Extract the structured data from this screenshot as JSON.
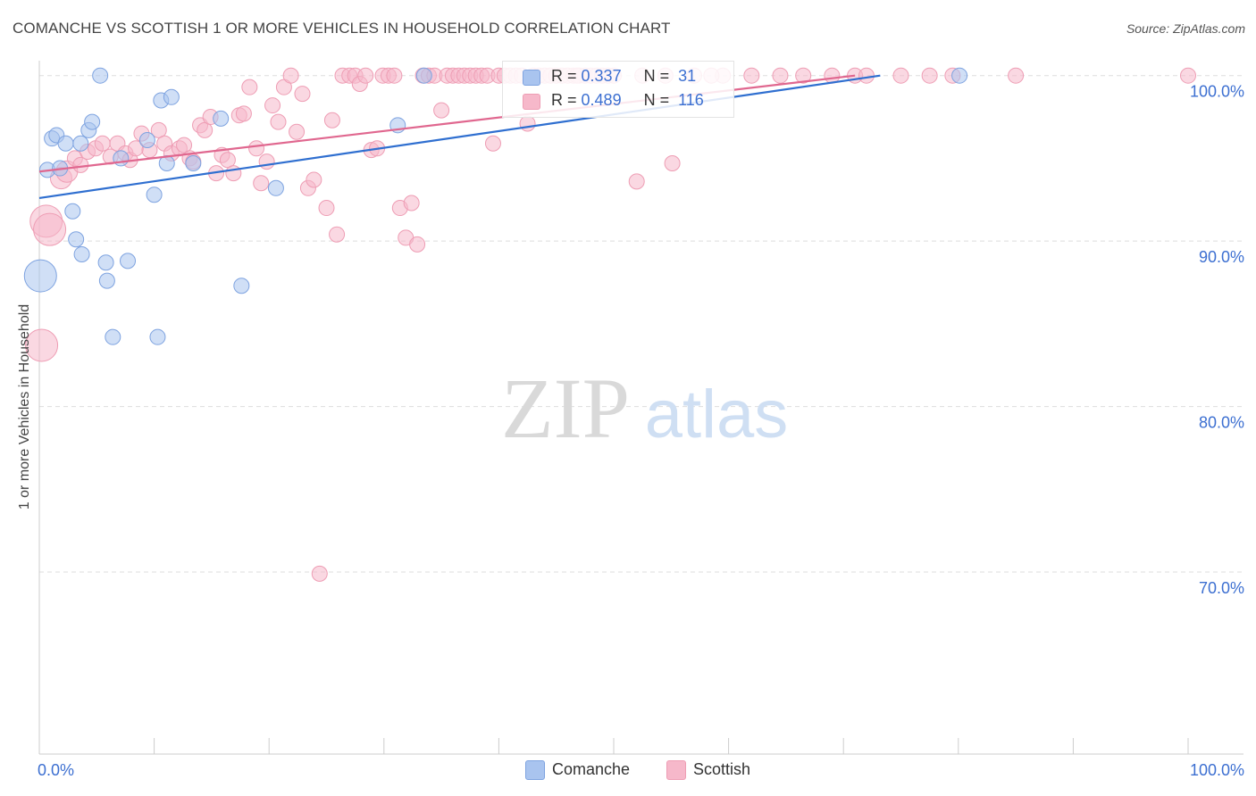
{
  "header": {
    "title": "COMANCHE VS SCOTTISH 1 OR MORE VEHICLES IN HOUSEHOLD CORRELATION CHART",
    "source": "Source: ZipAtlas.com"
  },
  "watermark": {
    "zip": "ZIP",
    "atlas": "atlas"
  },
  "legend": {
    "r_label": "R =",
    "n_label": "N =",
    "rows": [
      {
        "name": "Comanche",
        "r": "0.337",
        "n": "31"
      },
      {
        "name": "Scottish",
        "r": "0.489",
        "n": "116"
      }
    ]
  },
  "colors": {
    "comanche_fill": "#a9c4ef",
    "comanche_stroke": "#7ea3e0",
    "comanche_line": "#2f6fd0",
    "scottish_fill": "#f6b8ca",
    "scottish_stroke": "#ee9db4",
    "scottish_line": "#e0678f",
    "tick_text": "#3c6fd1",
    "grid": "#dddddd"
  },
  "chart_data": {
    "type": "scatter",
    "title": "COMANCHE VS SCOTTISH 1 OR MORE VEHICLES IN HOUSEHOLD CORRELATION CHART",
    "xlabel": "",
    "ylabel": "1 or more Vehicles in Household",
    "xlim": [
      0,
      100
    ],
    "ylim": [
      59,
      100.9
    ],
    "x_tick_labels": [
      {
        "value": 0,
        "label": "0.0%"
      },
      {
        "value": 100,
        "label": "100.0%"
      }
    ],
    "y_tick_labels": [
      {
        "value": 100,
        "label": "100.0%"
      },
      {
        "value": 90,
        "label": "90.0%"
      },
      {
        "value": 80,
        "label": "80.0%"
      },
      {
        "value": 70,
        "label": "70.0%"
      }
    ],
    "grid": true,
    "legend_position": "top-center",
    "series": [
      {
        "name": "Comanche",
        "trend": {
          "x": [
            0,
            73.2
          ],
          "y": [
            92.6,
            100.0
          ]
        },
        "points": [
          {
            "x": 0.1,
            "y": 87.9,
            "s": 3
          },
          {
            "x": 0.7,
            "y": 94.3,
            "s": 1
          },
          {
            "x": 1.1,
            "y": 96.2,
            "s": 1
          },
          {
            "x": 1.5,
            "y": 96.4,
            "s": 1
          },
          {
            "x": 1.8,
            "y": 94.4,
            "s": 1
          },
          {
            "x": 2.3,
            "y": 95.9,
            "s": 1
          },
          {
            "x": 2.9,
            "y": 91.8,
            "s": 1
          },
          {
            "x": 3.2,
            "y": 90.1,
            "s": 1
          },
          {
            "x": 3.7,
            "y": 89.2,
            "s": 1
          },
          {
            "x": 3.6,
            "y": 95.9,
            "s": 1
          },
          {
            "x": 4.3,
            "y": 96.7,
            "s": 1
          },
          {
            "x": 4.6,
            "y": 97.2,
            "s": 1
          },
          {
            "x": 5.3,
            "y": 100.0,
            "s": 1
          },
          {
            "x": 5.8,
            "y": 88.7,
            "s": 1
          },
          {
            "x": 5.9,
            "y": 87.6,
            "s": 1
          },
          {
            "x": 6.4,
            "y": 84.2,
            "s": 1
          },
          {
            "x": 7.1,
            "y": 95.0,
            "s": 1
          },
          {
            "x": 7.7,
            "y": 88.8,
            "s": 1
          },
          {
            "x": 9.4,
            "y": 96.1,
            "s": 1
          },
          {
            "x": 10.0,
            "y": 92.8,
            "s": 1
          },
          {
            "x": 10.3,
            "y": 84.2,
            "s": 1
          },
          {
            "x": 10.6,
            "y": 98.5,
            "s": 1
          },
          {
            "x": 11.1,
            "y": 94.7,
            "s": 1
          },
          {
            "x": 11.5,
            "y": 98.7,
            "s": 1
          },
          {
            "x": 13.4,
            "y": 94.7,
            "s": 1
          },
          {
            "x": 15.8,
            "y": 97.4,
            "s": 1
          },
          {
            "x": 17.6,
            "y": 87.3,
            "s": 1
          },
          {
            "x": 20.6,
            "y": 93.2,
            "s": 1
          },
          {
            "x": 31.2,
            "y": 97.0,
            "s": 1
          },
          {
            "x": 33.5,
            "y": 100.0,
            "s": 1
          },
          {
            "x": 80.1,
            "y": 100.0,
            "s": 1
          }
        ]
      },
      {
        "name": "Scottish",
        "trend": {
          "x": [
            0,
            71.0
          ],
          "y": [
            94.2,
            100.0
          ]
        },
        "points": [
          {
            "x": 0.2,
            "y": 83.7,
            "s": 3
          },
          {
            "x": 0.6,
            "y": 91.2,
            "s": 3
          },
          {
            "x": 0.9,
            "y": 90.7,
            "s": 3
          },
          {
            "x": 1.9,
            "y": 93.8,
            "s": 2
          },
          {
            "x": 2.4,
            "y": 94.2,
            "s": 2
          },
          {
            "x": 3.1,
            "y": 95.0,
            "s": 1
          },
          {
            "x": 3.6,
            "y": 94.6,
            "s": 1
          },
          {
            "x": 4.2,
            "y": 95.4,
            "s": 1
          },
          {
            "x": 4.9,
            "y": 95.6,
            "s": 1
          },
          {
            "x": 5.5,
            "y": 95.9,
            "s": 1
          },
          {
            "x": 6.2,
            "y": 95.1,
            "s": 1
          },
          {
            "x": 6.8,
            "y": 95.9,
            "s": 1
          },
          {
            "x": 7.5,
            "y": 95.3,
            "s": 1
          },
          {
            "x": 7.9,
            "y": 94.9,
            "s": 1
          },
          {
            "x": 8.4,
            "y": 95.6,
            "s": 1
          },
          {
            "x": 8.9,
            "y": 96.5,
            "s": 1
          },
          {
            "x": 9.6,
            "y": 95.5,
            "s": 1
          },
          {
            "x": 10.4,
            "y": 96.7,
            "s": 1
          },
          {
            "x": 10.9,
            "y": 95.9,
            "s": 1
          },
          {
            "x": 11.5,
            "y": 95.3,
            "s": 1
          },
          {
            "x": 12.2,
            "y": 95.6,
            "s": 1
          },
          {
            "x": 12.6,
            "y": 95.8,
            "s": 1
          },
          {
            "x": 13.1,
            "y": 95.0,
            "s": 1
          },
          {
            "x": 13.4,
            "y": 94.8,
            "s": 1
          },
          {
            "x": 14.0,
            "y": 97.0,
            "s": 1
          },
          {
            "x": 14.4,
            "y": 96.7,
            "s": 1
          },
          {
            "x": 14.9,
            "y": 97.5,
            "s": 1
          },
          {
            "x": 15.4,
            "y": 94.1,
            "s": 1
          },
          {
            "x": 15.9,
            "y": 95.2,
            "s": 1
          },
          {
            "x": 16.4,
            "y": 94.9,
            "s": 1
          },
          {
            "x": 16.9,
            "y": 94.1,
            "s": 1
          },
          {
            "x": 17.4,
            "y": 97.6,
            "s": 1
          },
          {
            "x": 17.8,
            "y": 97.7,
            "s": 1
          },
          {
            "x": 18.3,
            "y": 99.3,
            "s": 1
          },
          {
            "x": 18.9,
            "y": 95.6,
            "s": 1
          },
          {
            "x": 19.3,
            "y": 93.5,
            "s": 1
          },
          {
            "x": 19.8,
            "y": 94.8,
            "s": 1
          },
          {
            "x": 20.3,
            "y": 98.2,
            "s": 1
          },
          {
            "x": 20.8,
            "y": 97.2,
            "s": 1
          },
          {
            "x": 21.3,
            "y": 99.3,
            "s": 1
          },
          {
            "x": 21.9,
            "y": 100.0,
            "s": 1
          },
          {
            "x": 22.4,
            "y": 96.6,
            "s": 1
          },
          {
            "x": 22.9,
            "y": 98.9,
            "s": 1
          },
          {
            "x": 23.4,
            "y": 93.2,
            "s": 1
          },
          {
            "x": 23.9,
            "y": 93.7,
            "s": 1
          },
          {
            "x": 24.4,
            "y": 69.9,
            "s": 1
          },
          {
            "x": 25.0,
            "y": 92.0,
            "s": 1
          },
          {
            "x": 25.5,
            "y": 97.3,
            "s": 1
          },
          {
            "x": 25.9,
            "y": 90.4,
            "s": 1
          },
          {
            "x": 26.4,
            "y": 100.0,
            "s": 1
          },
          {
            "x": 27.0,
            "y": 100.0,
            "s": 1
          },
          {
            "x": 27.5,
            "y": 100.0,
            "s": 1
          },
          {
            "x": 27.9,
            "y": 99.5,
            "s": 1
          },
          {
            "x": 28.4,
            "y": 100.0,
            "s": 1
          },
          {
            "x": 28.9,
            "y": 95.5,
            "s": 1
          },
          {
            "x": 29.4,
            "y": 95.6,
            "s": 1
          },
          {
            "x": 29.9,
            "y": 100.0,
            "s": 1
          },
          {
            "x": 30.4,
            "y": 100.0,
            "s": 1
          },
          {
            "x": 30.9,
            "y": 100.0,
            "s": 1
          },
          {
            "x": 31.4,
            "y": 92.0,
            "s": 1
          },
          {
            "x": 31.9,
            "y": 90.2,
            "s": 1
          },
          {
            "x": 32.4,
            "y": 92.3,
            "s": 1
          },
          {
            "x": 32.9,
            "y": 89.8,
            "s": 1
          },
          {
            "x": 33.4,
            "y": 100.0,
            "s": 1
          },
          {
            "x": 33.9,
            "y": 100.0,
            "s": 1
          },
          {
            "x": 34.4,
            "y": 100.0,
            "s": 1
          },
          {
            "x": 35.0,
            "y": 97.9,
            "s": 1
          },
          {
            "x": 35.5,
            "y": 100.0,
            "s": 1
          },
          {
            "x": 36.0,
            "y": 100.0,
            "s": 1
          },
          {
            "x": 36.5,
            "y": 100.0,
            "s": 1
          },
          {
            "x": 37.0,
            "y": 100.0,
            "s": 1
          },
          {
            "x": 37.5,
            "y": 100.0,
            "s": 1
          },
          {
            "x": 38.0,
            "y": 100.0,
            "s": 1
          },
          {
            "x": 38.5,
            "y": 100.0,
            "s": 1
          },
          {
            "x": 39.0,
            "y": 100.0,
            "s": 1
          },
          {
            "x": 39.5,
            "y": 95.9,
            "s": 1
          },
          {
            "x": 40.0,
            "y": 100.0,
            "s": 1
          },
          {
            "x": 40.5,
            "y": 100.0,
            "s": 1
          },
          {
            "x": 41.0,
            "y": 100.0,
            "s": 1
          },
          {
            "x": 41.5,
            "y": 100.0,
            "s": 1
          },
          {
            "x": 42.0,
            "y": 100.0,
            "s": 1
          },
          {
            "x": 42.5,
            "y": 97.1,
            "s": 1
          },
          {
            "x": 43.0,
            "y": 100.0,
            "s": 1
          },
          {
            "x": 43.5,
            "y": 100.0,
            "s": 1
          },
          {
            "x": 44.0,
            "y": 100.0,
            "s": 1
          },
          {
            "x": 44.5,
            "y": 100.0,
            "s": 1
          },
          {
            "x": 45.0,
            "y": 100.0,
            "s": 1
          },
          {
            "x": 45.5,
            "y": 100.0,
            "s": 1
          },
          {
            "x": 46.0,
            "y": 100.0,
            "s": 1
          },
          {
            "x": 46.5,
            "y": 100.0,
            "s": 1
          },
          {
            "x": 47.0,
            "y": 100.0,
            "s": 1
          },
          {
            "x": 47.5,
            "y": 100.0,
            "s": 1
          },
          {
            "x": 48.0,
            "y": 100.0,
            "s": 1
          },
          {
            "x": 48.5,
            "y": 100.0,
            "s": 1
          },
          {
            "x": 49.0,
            "y": 100.0,
            "s": 1
          },
          {
            "x": 49.5,
            "y": 100.0,
            "s": 1
          },
          {
            "x": 50.0,
            "y": 100.0,
            "s": 1
          },
          {
            "x": 52.0,
            "y": 93.6,
            "s": 1
          },
          {
            "x": 52.5,
            "y": 100.0,
            "s": 1
          },
          {
            "x": 54.5,
            "y": 100.0,
            "s": 1
          },
          {
            "x": 55.1,
            "y": 94.7,
            "s": 1
          },
          {
            "x": 57.0,
            "y": 100.0,
            "s": 1
          },
          {
            "x": 59.5,
            "y": 100.0,
            "s": 1
          },
          {
            "x": 62.0,
            "y": 100.0,
            "s": 1
          },
          {
            "x": 64.5,
            "y": 100.0,
            "s": 1
          },
          {
            "x": 66.5,
            "y": 100.0,
            "s": 1
          },
          {
            "x": 69.0,
            "y": 100.0,
            "s": 1
          },
          {
            "x": 71.0,
            "y": 100.0,
            "s": 1
          },
          {
            "x": 72.0,
            "y": 100.0,
            "s": 1
          },
          {
            "x": 75.0,
            "y": 100.0,
            "s": 1
          },
          {
            "x": 77.5,
            "y": 100.0,
            "s": 1
          },
          {
            "x": 79.5,
            "y": 100.0,
            "s": 1
          },
          {
            "x": 85.0,
            "y": 100.0,
            "s": 1
          },
          {
            "x": 100.0,
            "y": 100.0,
            "s": 1
          },
          {
            "x": 58.5,
            "y": 100.0,
            "s": 1
          },
          {
            "x": 46.8,
            "y": 100.0,
            "s": 1
          }
        ]
      }
    ]
  }
}
